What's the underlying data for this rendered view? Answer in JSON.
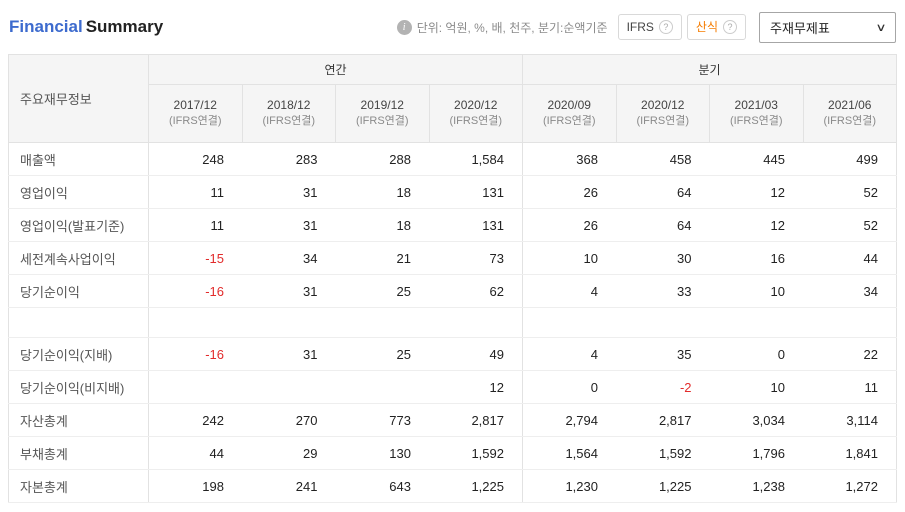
{
  "header": {
    "title_primary": "Financial",
    "title_secondary": "Summary",
    "info_glyph": "i",
    "unit_note": "단위: 억원, %, 배, 천주, 분기:순액기준",
    "ifrs_label": "IFRS",
    "formula_label": "산식",
    "help_glyph": "?",
    "statement_select": "주재무제표",
    "chevron_glyph": "∨"
  },
  "colors": {
    "accent_blue": "#3d6bce",
    "negative": "#e22b2b",
    "formula_orange": "#f57c00"
  },
  "table": {
    "corner_label": "주요재무정보",
    "groups": [
      {
        "label": "연간",
        "span": 4
      },
      {
        "label": "분기",
        "span": 4
      }
    ],
    "columns": [
      {
        "period": "2017/12",
        "basis": "(IFRS연결)"
      },
      {
        "period": "2018/12",
        "basis": "(IFRS연결)"
      },
      {
        "period": "2019/12",
        "basis": "(IFRS연결)"
      },
      {
        "period": "2020/12",
        "basis": "(IFRS연결)"
      },
      {
        "period": "2020/09",
        "basis": "(IFRS연결)"
      },
      {
        "period": "2020/12",
        "basis": "(IFRS연결)"
      },
      {
        "period": "2021/03",
        "basis": "(IFRS연결)"
      },
      {
        "period": "2021/06",
        "basis": "(IFRS연결)"
      }
    ],
    "rows": [
      {
        "label": "매출액",
        "values": [
          "248",
          "283",
          "288",
          "1,584",
          "368",
          "458",
          "445",
          "499"
        ]
      },
      {
        "label": "영업이익",
        "values": [
          "11",
          "31",
          "18",
          "131",
          "26",
          "64",
          "12",
          "52"
        ]
      },
      {
        "label": "영업이익(발표기준)",
        "values": [
          "11",
          "31",
          "18",
          "131",
          "26",
          "64",
          "12",
          "52"
        ]
      },
      {
        "label": "세전계속사업이익",
        "values": [
          "-15",
          "34",
          "21",
          "73",
          "10",
          "30",
          "16",
          "44"
        ]
      },
      {
        "label": "당기순이익",
        "values": [
          "-16",
          "31",
          "25",
          "62",
          "4",
          "33",
          "10",
          "34"
        ]
      },
      {
        "label": "당기순이익(지배)",
        "gap_before": true,
        "values": [
          "-16",
          "31",
          "25",
          "49",
          "4",
          "35",
          "0",
          "22"
        ]
      },
      {
        "label": "당기순이익(비지배)",
        "values": [
          "",
          "",
          "",
          "12",
          "0",
          "-2",
          "10",
          "11"
        ]
      },
      {
        "label": "자산총계",
        "values": [
          "242",
          "270",
          "773",
          "2,817",
          "2,794",
          "2,817",
          "3,034",
          "3,114"
        ]
      },
      {
        "label": "부채총계",
        "values": [
          "44",
          "29",
          "130",
          "1,592",
          "1,564",
          "1,592",
          "1,796",
          "1,841"
        ]
      },
      {
        "label": "자본총계",
        "values": [
          "198",
          "241",
          "643",
          "1,225",
          "1,230",
          "1,225",
          "1,238",
          "1,272"
        ]
      }
    ]
  }
}
